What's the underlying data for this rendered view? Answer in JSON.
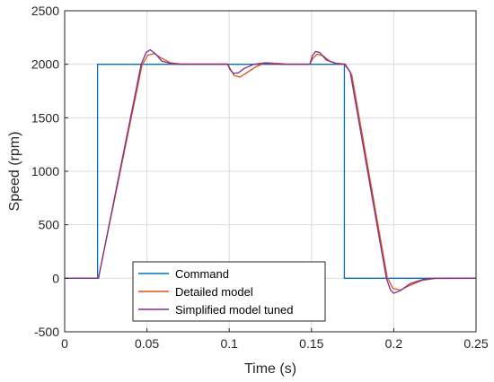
{
  "chart_data": {
    "type": "line",
    "xlabel": "Time (s)",
    "ylabel": "Speed (rpm)",
    "xlim": [
      0,
      0.25
    ],
    "ylim": [
      -500,
      2500
    ],
    "xticks": [
      0,
      0.05,
      0.1,
      0.15,
      0.2,
      0.25
    ],
    "yticks": [
      -500,
      0,
      500,
      1000,
      1500,
      2000,
      2500
    ],
    "xtick_labels": [
      "0",
      "0.05",
      "0.1",
      "0.15",
      "0.2",
      "0.25"
    ],
    "ytick_labels": [
      "-500",
      "0",
      "500",
      "1000",
      "1500",
      "2000",
      "2500"
    ],
    "grid": true,
    "legend_position": "bottom-center",
    "series": [
      {
        "name": "Command",
        "color": "#0072BD",
        "x": [
          0,
          0.02,
          0.02,
          0.17,
          0.17,
          0.25
        ],
        "y": [
          0,
          0,
          2000,
          2000,
          0,
          0
        ]
      },
      {
        "name": "Detailed model",
        "color": "#D95319",
        "x": [
          0,
          0.0205,
          0.047,
          0.0505,
          0.0545,
          0.058,
          0.064,
          0.07,
          0.099,
          0.1005,
          0.103,
          0.1065,
          0.11,
          0.116,
          0.122,
          0.128,
          0.135,
          0.149,
          0.151,
          0.1535,
          0.157,
          0.161,
          0.165,
          0.1705,
          0.1745,
          0.196,
          0.1995,
          0.204,
          0.21,
          0.217,
          0.225,
          0.25
        ],
        "y": [
          0,
          0,
          1990,
          2085,
          2100,
          2065,
          2015,
          2003,
          2003,
          1960,
          1895,
          1880,
          1915,
          1975,
          2015,
          2010,
          2002,
          2003,
          2060,
          2095,
          2080,
          2030,
          2010,
          2002,
          1900,
          10,
          -95,
          -110,
          -65,
          -20,
          -2,
          0
        ]
      },
      {
        "name": "Simplified model tuned",
        "color": "#7E2F8E",
        "x": [
          0,
          0.0205,
          0.0465,
          0.0495,
          0.052,
          0.055,
          0.059,
          0.065,
          0.07,
          0.099,
          0.1005,
          0.1025,
          0.1055,
          0.109,
          0.115,
          0.121,
          0.127,
          0.135,
          0.149,
          0.1505,
          0.1525,
          0.155,
          0.159,
          0.165,
          0.17,
          0.1735,
          0.1955,
          0.198,
          0.2,
          0.204,
          0.21,
          0.218,
          0.225,
          0.25
        ],
        "y": [
          0,
          0,
          2000,
          2110,
          2135,
          2100,
          2030,
          2005,
          2000,
          2000,
          1950,
          1915,
          1920,
          1960,
          2000,
          2012,
          2002,
          2000,
          2000,
          2080,
          2120,
          2110,
          2040,
          2005,
          2000,
          1930,
          0,
          -110,
          -140,
          -115,
          -50,
          -10,
          0,
          0
        ]
      }
    ]
  }
}
